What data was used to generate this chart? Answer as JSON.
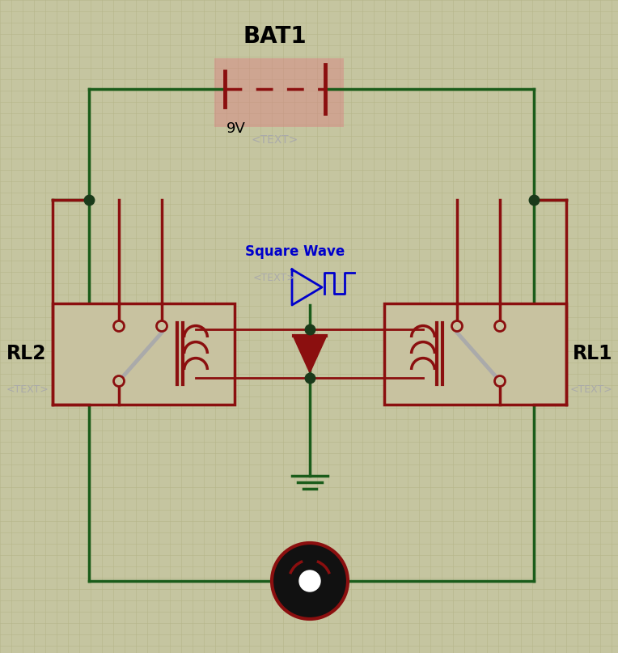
{
  "bg_color": "#c5c5a0",
  "grid_color": "#b5b58a",
  "wire_color": "#1a5c1a",
  "component_color": "#8b0f0f",
  "relay_fill": "#c8c2a0",
  "bat_highlight_color": "#d98080",
  "title": "BAT1",
  "voltage": "9V",
  "text_placeholder": "<TEXT>",
  "sq_wave_label": "Square Wave",
  "rl1_label": "RL1",
  "rl2_label": "RL2",
  "motor_dark": "#1a1010",
  "node_color": "#1a3a1a",
  "switch_color": "#aaaaaa",
  "darkred": "#8b0f0f",
  "blue": "#0000cc"
}
